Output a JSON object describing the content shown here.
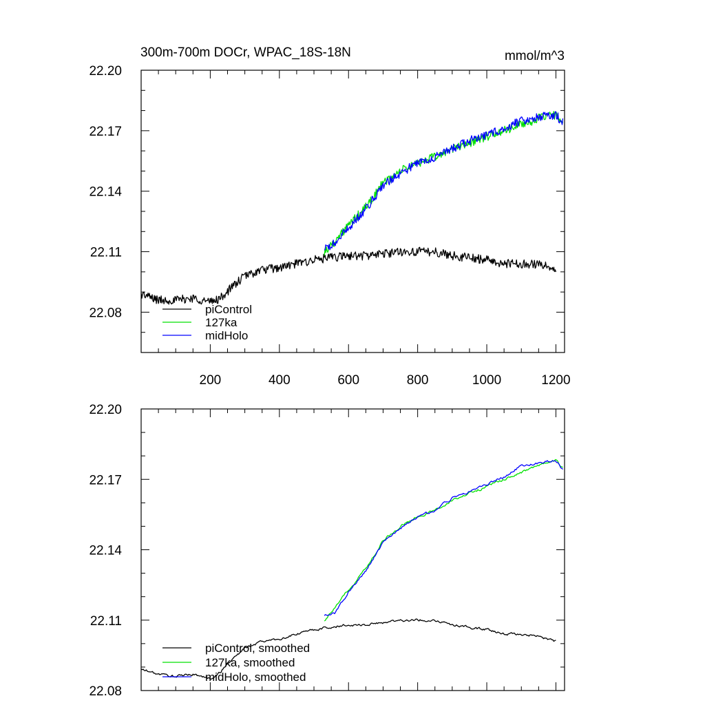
{
  "chart_data": [
    {
      "type": "line",
      "title": "300m-700m DOCr, WPAC_18S-18N",
      "units": "mmol/m^3",
      "xlim": [
        0,
        1225
      ],
      "ylim": [
        22.06,
        22.2
      ],
      "xticks": [
        200,
        400,
        600,
        800,
        1000,
        1200
      ],
      "xtick_labels": [
        "200",
        "400",
        "600",
        "800",
        "1000",
        "1200"
      ],
      "yticks": [
        22.08,
        22.11,
        22.14,
        22.17,
        22.2
      ],
      "ytick_labels": [
        "22.08",
        "22.11",
        "22.14",
        "22.17",
        "22.20"
      ],
      "grid": false,
      "legend_position": "bottom-left",
      "noise": 0.0022,
      "series": [
        {
          "name": "piControl",
          "color": "#000000",
          "x": [
            0,
            50,
            100,
            150,
            200,
            230,
            260,
            300,
            350,
            400,
            450,
            500,
            550,
            600,
            650,
            700,
            750,
            800,
            850,
            900,
            950,
            1000,
            1050,
            1100,
            1150,
            1200
          ],
          "y": [
            22.089,
            22.086,
            22.086,
            22.087,
            22.085,
            22.087,
            22.092,
            22.098,
            22.101,
            22.102,
            22.104,
            22.106,
            22.107,
            22.108,
            22.108,
            22.109,
            22.11,
            22.11,
            22.11,
            22.108,
            22.107,
            22.106,
            22.104,
            22.104,
            22.104,
            22.101
          ]
        },
        {
          "name": "127ka",
          "color": "#00e000",
          "x": [
            530,
            560,
            600,
            650,
            700,
            750,
            800,
            850,
            900,
            950,
            1000,
            1050,
            1100,
            1150,
            1200,
            1220
          ],
          "y": [
            22.11,
            22.115,
            22.123,
            22.132,
            22.144,
            22.15,
            22.154,
            22.157,
            22.161,
            22.164,
            22.167,
            22.17,
            22.173,
            22.176,
            22.178,
            22.175
          ]
        },
        {
          "name": "midHolo",
          "color": "#0000ff",
          "x": [
            530,
            560,
            600,
            650,
            700,
            750,
            800,
            850,
            900,
            950,
            1000,
            1050,
            1100,
            1150,
            1200,
            1220
          ],
          "y": [
            22.111,
            22.114,
            22.122,
            22.131,
            22.143,
            22.149,
            22.154,
            22.157,
            22.161,
            22.165,
            22.168,
            22.171,
            22.175,
            22.177,
            22.178,
            22.174
          ]
        }
      ]
    },
    {
      "type": "line",
      "title": "",
      "units": "",
      "xlim": [
        0,
        1225
      ],
      "ylim": [
        22.08,
        22.2
      ],
      "xticks": [
        200,
        400,
        600,
        800,
        1000,
        1200
      ],
      "xtick_labels": [],
      "yticks": [
        22.08,
        22.11,
        22.14,
        22.17,
        22.2
      ],
      "ytick_labels": [
        "22.08",
        "22.11",
        "22.14",
        "22.17",
        "22.20"
      ],
      "grid": false,
      "legend_position": "bottom-left",
      "noise": 0.0011,
      "series": [
        {
          "name": "piControl, smoothed",
          "color": "#000000",
          "x": [
            0,
            50,
            100,
            150,
            200,
            230,
            260,
            300,
            350,
            400,
            450,
            500,
            550,
            600,
            650,
            700,
            750,
            800,
            850,
            900,
            950,
            1000,
            1050,
            1100,
            1150,
            1200
          ],
          "y": [
            22.089,
            22.087,
            22.086,
            22.087,
            22.085,
            22.088,
            22.093,
            22.098,
            22.101,
            22.102,
            22.104,
            22.106,
            22.107,
            22.108,
            22.108,
            22.109,
            22.11,
            22.11,
            22.11,
            22.108,
            22.107,
            22.106,
            22.104,
            22.104,
            22.103,
            22.101
          ]
        },
        {
          "name": "127ka, smoothed",
          "color": "#00e000",
          "x": [
            530,
            560,
            600,
            650,
            700,
            750,
            800,
            850,
            900,
            950,
            1000,
            1050,
            1100,
            1150,
            1200,
            1220
          ],
          "y": [
            22.11,
            22.115,
            22.123,
            22.132,
            22.144,
            22.15,
            22.154,
            22.157,
            22.161,
            22.164,
            22.167,
            22.17,
            22.173,
            22.176,
            22.178,
            22.175
          ]
        },
        {
          "name": "midHolo, smoothed",
          "color": "#0000ff",
          "x": [
            530,
            560,
            600,
            650,
            700,
            750,
            800,
            850,
            900,
            950,
            1000,
            1050,
            1100,
            1150,
            1200,
            1220
          ],
          "y": [
            22.112,
            22.113,
            22.122,
            22.131,
            22.143,
            22.149,
            22.154,
            22.157,
            22.162,
            22.165,
            22.168,
            22.171,
            22.176,
            22.177,
            22.178,
            22.174
          ]
        }
      ]
    }
  ]
}
